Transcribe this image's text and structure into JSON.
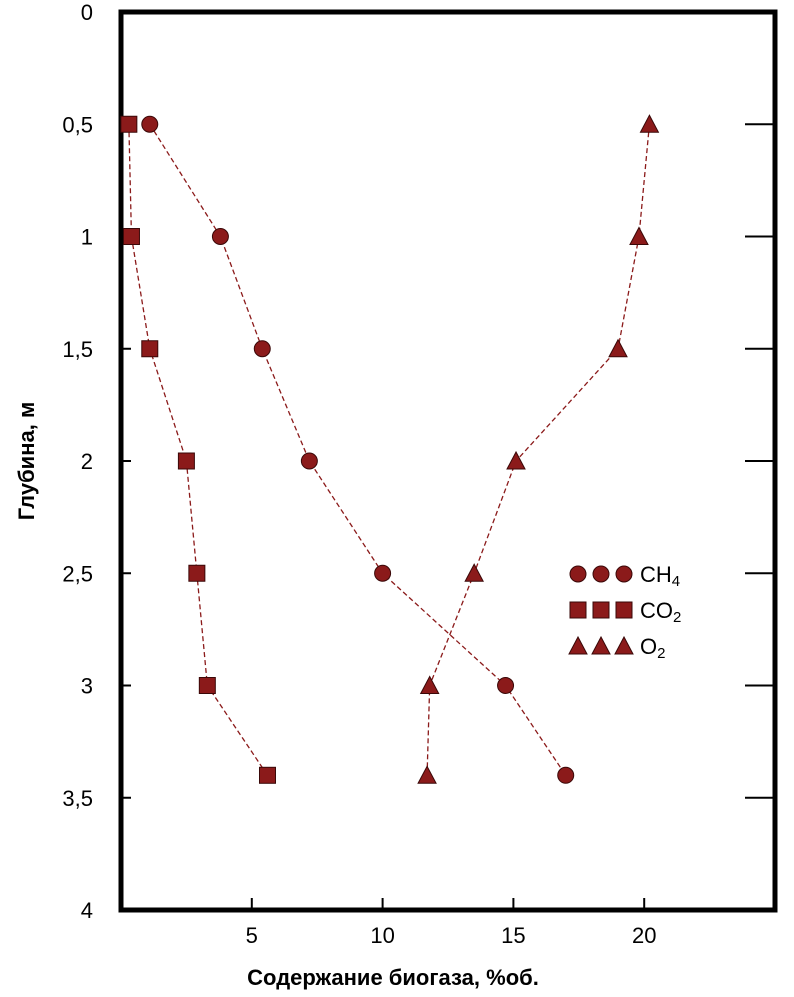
{
  "chart_data": {
    "type": "scatter",
    "xlabel": "Содержание биогаза, %об.",
    "ylabel": "Глубина, м",
    "xlim": [
      0,
      25
    ],
    "ylim": [
      0,
      4
    ],
    "y_inverted": true,
    "x_ticks": [
      5,
      10,
      15,
      20
    ],
    "x_tick_labels": [
      "5",
      "10",
      "15",
      "20"
    ],
    "y_ticks": [
      0,
      0.5,
      1,
      1.5,
      2,
      2.5,
      3,
      3.5,
      4
    ],
    "y_tick_labels": [
      "0",
      "0,5",
      "1",
      "1,5",
      "2",
      "2,5",
      "3",
      "3,5",
      "4"
    ],
    "grid": false,
    "legend_position": "right-middle",
    "color": "#8b1a1a",
    "series": [
      {
        "name": "CH",
        "sub": "4",
        "marker": "circle",
        "points": [
          [
            1.1,
            0.5
          ],
          [
            3.8,
            1.0
          ],
          [
            5.4,
            1.5
          ],
          [
            7.2,
            2.0
          ],
          [
            10.0,
            2.5
          ],
          [
            14.7,
            3.0
          ],
          [
            17.0,
            3.4
          ]
        ]
      },
      {
        "name": "CO",
        "sub": "2",
        "marker": "square",
        "points": [
          [
            0.3,
            0.5
          ],
          [
            0.4,
            1.0
          ],
          [
            1.1,
            1.5
          ],
          [
            2.5,
            2.0
          ],
          [
            2.9,
            2.5
          ],
          [
            3.3,
            3.0
          ],
          [
            5.6,
            3.4
          ]
        ]
      },
      {
        "name": "O",
        "sub": "2",
        "marker": "triangle",
        "points": [
          [
            20.2,
            0.5
          ],
          [
            19.8,
            1.0
          ],
          [
            19.0,
            1.5
          ],
          [
            15.1,
            2.0
          ],
          [
            13.5,
            2.5
          ],
          [
            11.8,
            3.0
          ],
          [
            11.7,
            3.4
          ]
        ]
      }
    ]
  }
}
